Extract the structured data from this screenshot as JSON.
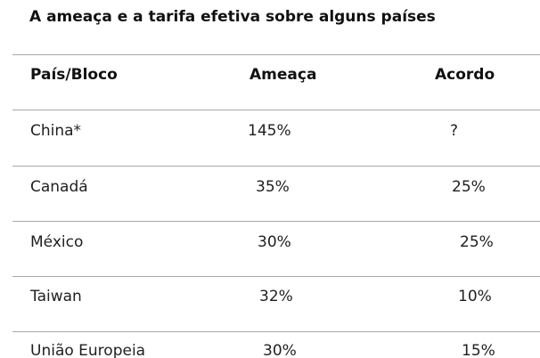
{
  "title": "A ameaça e a tarifa efetiva sobre alguns países",
  "table": {
    "headers": [
      "País/Bloco",
      "Ameaça",
      "Acordo"
    ],
    "rows": [
      [
        "China*",
        "145%",
        "?"
      ],
      [
        "Canadá",
        "35%",
        "25%"
      ],
      [
        "México",
        "30%",
        "25%"
      ],
      [
        "Taiwan",
        "32%",
        "10%"
      ],
      [
        "União Europeia",
        "30%",
        "15%"
      ]
    ]
  }
}
